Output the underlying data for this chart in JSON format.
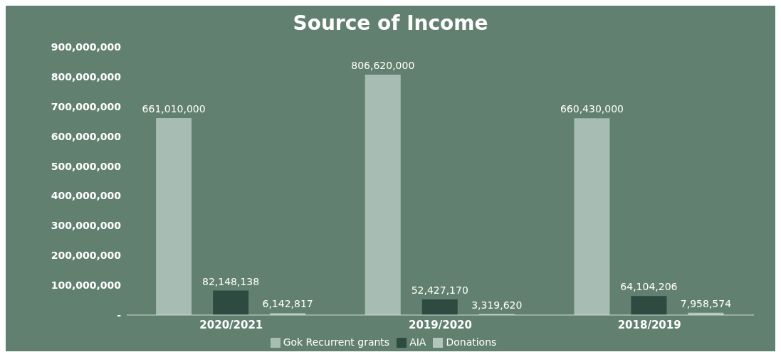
{
  "chart_data": {
    "type": "bar",
    "title": "Source of Income",
    "categories": [
      "2020/2021",
      "2019/2020",
      "2018/2019"
    ],
    "series": [
      {
        "name": "Gok Recurrent grants",
        "color": "#a7bcb2",
        "values": [
          661010000,
          806620000,
          660430000
        ],
        "value_labels": [
          "661,010,000",
          "806,620,000",
          "660,430,000"
        ]
      },
      {
        "name": "AIA",
        "color": "#2e4b41",
        "values": [
          82148138,
          52427170,
          64104206
        ],
        "value_labels": [
          "82,148,138",
          "52,427,170",
          "64,104,206"
        ]
      },
      {
        "name": "Donations",
        "color": "#b3c6bd",
        "values": [
          6142817,
          3319620,
          7958574
        ],
        "value_labels": [
          "6,142,817",
          "3,319,620",
          "7,958,574"
        ]
      }
    ],
    "ylim": [
      0,
      900000000
    ],
    "yticks": [
      {
        "value": 0,
        "label": "-"
      },
      {
        "value": 100000000,
        "label": "100,000,000"
      },
      {
        "value": 200000000,
        "label": "200,000,000"
      },
      {
        "value": 300000000,
        "label": "300,000,000"
      },
      {
        "value": 400000000,
        "label": "400,000,000"
      },
      {
        "value": 500000000,
        "label": "500,000,000"
      },
      {
        "value": 600000000,
        "label": "600,000,000"
      },
      {
        "value": 700000000,
        "label": "700,000,000"
      },
      {
        "value": 800000000,
        "label": "800,000,000"
      },
      {
        "value": 900000000,
        "label": "900,000,000"
      }
    ],
    "legend": "bottom"
  }
}
